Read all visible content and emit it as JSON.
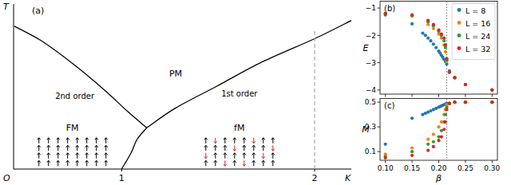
{
  "chart_data": [
    {
      "type": "line",
      "title": "(a)",
      "xlabel": "K",
      "ylabel": "T",
      "origin_label": "O",
      "xlim": [
        0.44,
        2.19
      ],
      "ylim": [
        0,
        1
      ],
      "xticks": [
        1,
        2
      ],
      "tick_labels": "x",
      "series": [
        {
          "color": "#000000",
          "line_style": "solid",
          "x": [
            0.444,
            0.58,
            0.745,
            0.91,
            1.03,
            1.13
          ],
          "values": [
            0.865,
            0.78,
            0.64,
            0.48,
            0.35,
            0.25
          ]
        },
        {
          "color": "#000000",
          "line_style": "solid",
          "x": [
            1.13,
            1.28,
            1.49,
            1.73,
            2.0,
            2.19
          ],
          "values": [
            0.25,
            0.37,
            0.5,
            0.65,
            0.79,
            0.9
          ]
        },
        {
          "color": "#000000",
          "line_style": "solid",
          "x": [
            1.13,
            1.08,
            1.05,
            1.0
          ],
          "values": [
            0.25,
            0.18,
            0.1,
            0.0
          ]
        },
        {
          "color": "#aaaaaa",
          "line_style": "dashed",
          "x": [
            2.0,
            2.0
          ],
          "values": [
            0.0,
            0.85
          ]
        }
      ],
      "annotations": [
        {
          "text": "PM",
          "x": 1.28,
          "y": 0.58
        },
        {
          "text": "2nd order",
          "x": 0.757,
          "y": 0.444
        },
        {
          "text": "1st order",
          "x": 1.61,
          "y": 0.46
        },
        {
          "text": "FM",
          "x": 0.745,
          "y": 0.25
        },
        {
          "text": "fM",
          "x": 1.61,
          "y": 0.25
        }
      ]
    },
    {
      "type": "scatter",
      "title": "(b)",
      "ylabel": "E",
      "xlim": [
        0.09,
        0.31
      ],
      "ylim": [
        -4.15,
        -0.75
      ],
      "xticks": [
        0.1,
        0.15,
        0.2,
        0.25,
        0.3
      ],
      "yticks": [
        {
          "value": -1,
          "label": "−1"
        },
        {
          "value": -2,
          "label": "−2"
        },
        {
          "value": -3,
          "label": "−3"
        },
        {
          "value": -4,
          "label": "−4"
        }
      ],
      "tick_labels": "y",
      "legend": "upper right",
      "marker": "circle",
      "reference_lines": [
        {
          "x": 0.215,
          "line_style": "dotted"
        }
      ],
      "series": [
        {
          "name": "L = 8",
          "color": "#1f77b4",
          "x": [
            0.1,
            0.15,
            0.17,
            0.175,
            0.18,
            0.185,
            0.19,
            0.195,
            0.2,
            0.2025,
            0.205,
            0.2075,
            0.21,
            0.2125,
            0.215,
            0.22,
            0.23,
            0.25,
            0.3
          ],
          "values": [
            -1.25,
            -1.58,
            -1.92,
            -2.0,
            -2.1,
            -2.2,
            -2.32,
            -2.45,
            -2.58,
            -2.65,
            -2.73,
            -2.8,
            -2.88,
            -2.95,
            -3.05,
            -3.3,
            -3.55,
            -3.8,
            -4.0
          ]
        },
        {
          "name": "L = 16",
          "color": "#ff7f0e",
          "x": [
            0.1,
            0.15,
            0.18,
            0.19,
            0.2,
            0.205,
            0.21,
            0.2125,
            0.215,
            0.22,
            0.23,
            0.25,
            0.3
          ],
          "values": [
            -1.2,
            -1.3,
            -1.6,
            -1.75,
            -1.95,
            -2.1,
            -2.35,
            -2.6,
            -2.95,
            -3.35,
            -3.55,
            -3.8,
            -4.0
          ]
        },
        {
          "name": "L = 24",
          "color": "#2ca02c",
          "x": [
            0.1,
            0.15,
            0.18,
            0.19,
            0.2,
            0.205,
            0.21,
            0.2125,
            0.215,
            0.22,
            0.23,
            0.25,
            0.3
          ],
          "values": [
            -1.2,
            -1.27,
            -1.5,
            -1.65,
            -1.85,
            -2.0,
            -2.2,
            -2.45,
            -2.9,
            -3.35,
            -3.55,
            -3.8,
            -4.0
          ]
        },
        {
          "name": "L = 32",
          "color": "#d62728",
          "x": [
            0.1,
            0.15,
            0.18,
            0.19,
            0.2,
            0.205,
            0.21,
            0.2125,
            0.215,
            0.22,
            0.23,
            0.25,
            0.3
          ],
          "values": [
            -1.2,
            -1.25,
            -1.45,
            -1.6,
            -1.8,
            -1.95,
            -2.1,
            -2.35,
            -2.85,
            -3.35,
            -3.55,
            -3.8,
            -4.0
          ]
        }
      ]
    },
    {
      "type": "scatter",
      "title": "(c)",
      "xlabel": "β",
      "ylabel": "M",
      "xlim": [
        0.09,
        0.31
      ],
      "ylim": [
        0.03,
        0.53
      ],
      "xticks": [
        {
          "value": 0.1,
          "label": "0.10"
        },
        0.15,
        {
          "value": 0.2,
          "label": "0.20"
        },
        0.25,
        {
          "value": 0.3,
          "label": "0.30"
        }
      ],
      "yticks": [
        0.1,
        0.3,
        0.5
      ],
      "marker": "circle",
      "reference_lines": [
        {
          "x": 0.215,
          "line_style": "dotted"
        }
      ],
      "series": [
        {
          "name": "L = 8",
          "color": "#1f77b4",
          "x": [
            0.1,
            0.15,
            0.17,
            0.175,
            0.18,
            0.185,
            0.19,
            0.195,
            0.2,
            0.2025,
            0.205,
            0.2075,
            0.21,
            0.2125,
            0.215,
            0.22,
            0.23,
            0.25,
            0.3
          ],
          "values": [
            0.16,
            0.37,
            0.4,
            0.41,
            0.42,
            0.43,
            0.44,
            0.45,
            0.46,
            0.465,
            0.47,
            0.475,
            0.48,
            0.485,
            0.49,
            0.49,
            0.5,
            0.5,
            0.5
          ]
        },
        {
          "name": "L = 16",
          "color": "#ff7f0e",
          "x": [
            0.1,
            0.15,
            0.18,
            0.19,
            0.2,
            0.205,
            0.21,
            0.2125,
            0.215,
            0.22,
            0.23,
            0.25,
            0.3
          ],
          "values": [
            0.08,
            0.13,
            0.2,
            0.24,
            0.3,
            0.34,
            0.4,
            0.44,
            0.48,
            0.49,
            0.5,
            0.5,
            0.5
          ]
        },
        {
          "name": "L = 24",
          "color": "#2ca02c",
          "x": [
            0.1,
            0.15,
            0.18,
            0.19,
            0.2,
            0.205,
            0.21,
            0.2125,
            0.215,
            0.22,
            0.23,
            0.25,
            0.3
          ],
          "values": [
            0.06,
            0.1,
            0.16,
            0.18,
            0.22,
            0.27,
            0.34,
            0.4,
            0.46,
            0.49,
            0.5,
            0.5,
            0.5
          ]
        },
        {
          "name": "L = 32",
          "color": "#d62728",
          "x": [
            0.1,
            0.15,
            0.18,
            0.19,
            0.2,
            0.205,
            0.21,
            0.2125,
            0.215,
            0.22,
            0.23,
            0.25,
            0.3
          ],
          "values": [
            0.05,
            0.07,
            0.11,
            0.14,
            0.19,
            0.22,
            0.28,
            0.34,
            0.44,
            0.49,
            0.5,
            0.5,
            0.5
          ]
        }
      ]
    }
  ]
}
